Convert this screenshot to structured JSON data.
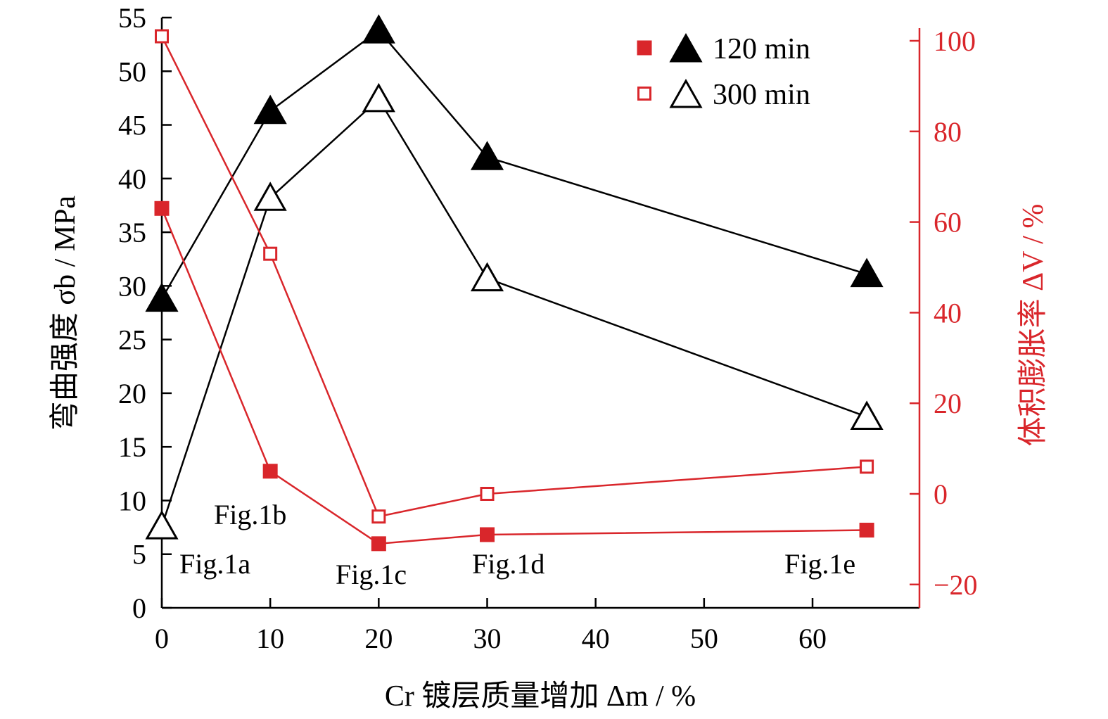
{
  "chart_data": {
    "type": "line",
    "xlabel": "Cr 镀层质量增加 Δm / %",
    "ylabel_left": "弯曲强度 σb / MPa",
    "ylabel_right": "体积膨胀率 ΔV / %",
    "xlim": [
      0,
      70
    ],
    "ylim_left": [
      0,
      55
    ],
    "ylim_right": [
      -25,
      100
    ],
    "x_ticks": [
      0,
      10,
      20,
      30,
      40,
      50,
      60
    ],
    "y_left_ticks": [
      0,
      5,
      10,
      15,
      20,
      25,
      30,
      35,
      40,
      45,
      50,
      55
    ],
    "y_right_ticks": [
      -20,
      0,
      20,
      40,
      60,
      80,
      100
    ],
    "legend_position": "top-right",
    "legend": [
      {
        "label": "120 min",
        "markers": [
          "filled-square",
          "filled-triangle"
        ]
      },
      {
        "label": "300 min",
        "markers": [
          "open-square",
          "open-triangle"
        ]
      }
    ],
    "series": [
      {
        "name": "120 min",
        "axis": "left",
        "marker": "filled-triangle",
        "color": "#000000",
        "x": [
          0,
          10,
          20,
          30,
          65
        ],
        "values": [
          28.8,
          46.3,
          53.8,
          42,
          31.1
        ]
      },
      {
        "name": "300 min",
        "axis": "left",
        "marker": "open-triangle",
        "color": "#000000",
        "x": [
          0,
          10,
          20,
          30,
          65
        ],
        "values": [
          7.6,
          38.2,
          47.4,
          30.7,
          17.8
        ]
      },
      {
        "name": "120 min",
        "axis": "right",
        "marker": "filled-square",
        "color": "#d9262b",
        "x": [
          0,
          10,
          20,
          30,
          65
        ],
        "values": [
          63,
          5,
          -11,
          -9,
          -8
        ]
      },
      {
        "name": "300 min",
        "axis": "right",
        "marker": "open-square",
        "color": "#d9262b",
        "x": [
          0,
          10,
          20,
          30,
          65
        ],
        "values": [
          101,
          53,
          -5,
          0,
          6
        ]
      }
    ],
    "annotations": [
      "Fig.1a",
      "Fig.1b",
      "Fig.1c",
      "Fig.1d",
      "Fig.1e"
    ]
  }
}
